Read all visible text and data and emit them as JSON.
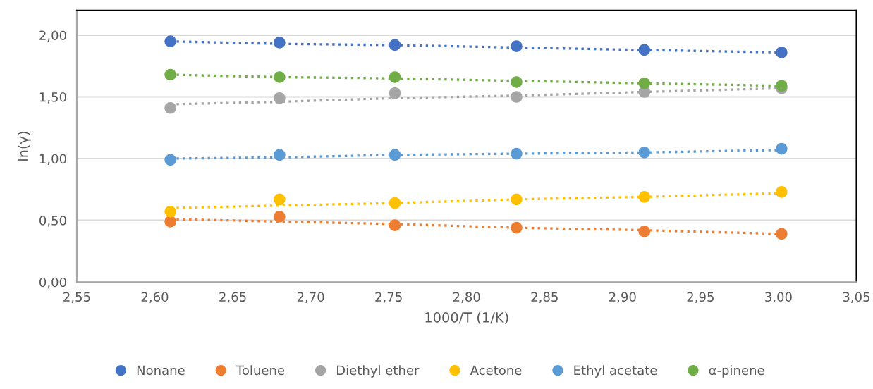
{
  "chart_data": {
    "type": "scatter",
    "xlabel": "1000/T (1/K)",
    "ylabel": "ln(γ)",
    "x": [
      2.61,
      2.68,
      2.754,
      2.832,
      2.914,
      3.002
    ],
    "series": [
      {
        "name": "Nonane",
        "color": "#4472c4",
        "values": [
          1.95,
          1.94,
          1.92,
          1.91,
          1.88,
          1.86
        ]
      },
      {
        "name": "Toluene",
        "color": "#ed7d31",
        "values": [
          0.49,
          0.53,
          0.46,
          0.44,
          0.41,
          0.39
        ]
      },
      {
        "name": "Diethyl ether",
        "color": "#a5a5a5",
        "values": [
          1.41,
          1.49,
          1.53,
          1.5,
          1.54,
          1.57
        ]
      },
      {
        "name": "Acetone",
        "color": "#ffc000",
        "values": [
          0.57,
          0.67,
          0.64,
          0.67,
          0.69,
          0.73
        ]
      },
      {
        "name": "Ethyl acetate",
        "color": "#5b9bd5",
        "values": [
          0.99,
          1.03,
          1.03,
          1.04,
          1.05,
          1.08
        ]
      },
      {
        "name": "α-pinene",
        "color": "#70ad47",
        "values": [
          1.68,
          1.66,
          1.66,
          1.62,
          1.61,
          1.59
        ]
      },
      {
        "type": "line",
        "color": "#4472c4",
        "values": [
          1.95,
          1.93,
          1.92,
          1.9,
          1.88,
          1.86
        ],
        "line_style": "dotted",
        "marker": "none"
      },
      {
        "type": "line",
        "color": "#ed7d31",
        "values": [
          0.51,
          0.49,
          0.47,
          0.44,
          0.42,
          0.39
        ],
        "line_style": "dotted",
        "marker": "none"
      },
      {
        "type": "line",
        "color": "#a5a5a5",
        "values": [
          1.44,
          1.46,
          1.49,
          1.51,
          1.54,
          1.57
        ],
        "line_style": "dotted",
        "marker": "none"
      },
      {
        "type": "line",
        "color": "#ffc000",
        "values": [
          0.6,
          0.62,
          0.64,
          0.67,
          0.69,
          0.72
        ],
        "line_style": "dotted",
        "marker": "none"
      },
      {
        "type": "line",
        "color": "#5b9bd5",
        "values": [
          1.0,
          1.01,
          1.03,
          1.04,
          1.05,
          1.07
        ],
        "line_style": "dotted",
        "marker": "none"
      },
      {
        "type": "line",
        "color": "#70ad47",
        "values": [
          1.68,
          1.66,
          1.65,
          1.63,
          1.61,
          1.59
        ],
        "line_style": "dotted",
        "marker": "none"
      }
    ],
    "marker": "circle",
    "xlim": [
      2.55,
      3.05
    ],
    "xticks": [
      {
        "value": 2.55,
        "label": "2,55"
      },
      {
        "value": 2.6,
        "label": "2,60"
      },
      {
        "value": 2.65,
        "label": "2,65"
      },
      {
        "value": 2.7,
        "label": "2,70"
      },
      {
        "value": 2.75,
        "label": "2,75"
      },
      {
        "value": 2.8,
        "label": "2,80"
      },
      {
        "value": 2.85,
        "label": "2,85"
      },
      {
        "value": 2.9,
        "label": "2,90"
      },
      {
        "value": 2.95,
        "label": "2,95"
      },
      {
        "value": 3.0,
        "label": "3,00"
      },
      {
        "value": 3.05,
        "label": "3,05"
      }
    ],
    "ylim": [
      0,
      2.2
    ],
    "yticks": [
      {
        "value": 0,
        "label": "0,00"
      },
      {
        "value": 0.5,
        "label": "0,50"
      },
      {
        "value": 1.0,
        "label": "1,00"
      },
      {
        "value": 1.5,
        "label": "1,50"
      },
      {
        "value": 2.0,
        "label": "2,00"
      }
    ],
    "grid": "y",
    "legend": "bottom"
  }
}
